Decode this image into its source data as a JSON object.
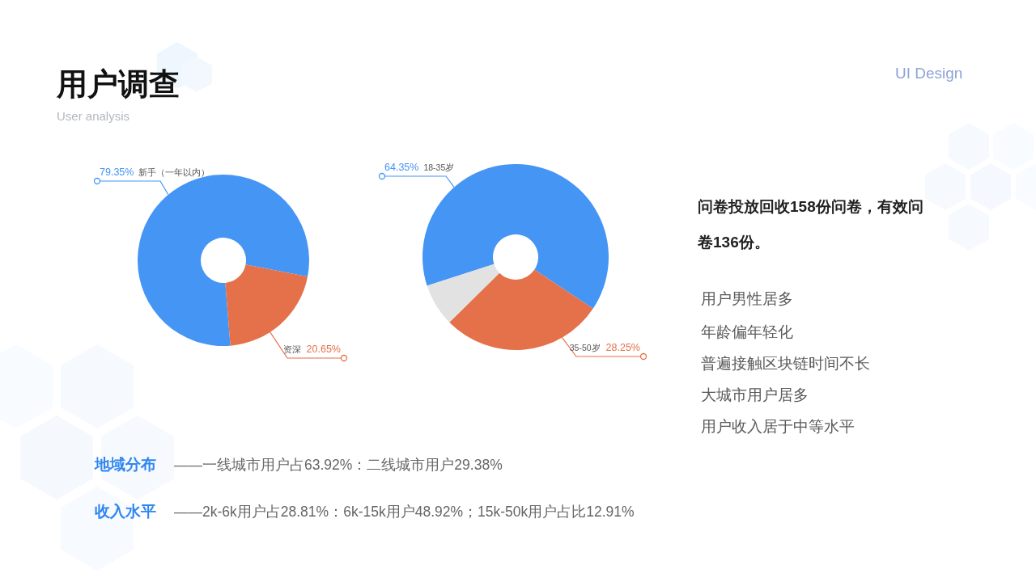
{
  "chart_data": [
    {
      "type": "other",
      "title": "用户调查",
      "subtitle": "User analysis",
      "annotations": [
        "UI Design"
      ]
    },
    {
      "type": "donut",
      "categories": [
        "新手（一年以内）",
        "资深"
      ],
      "values": [
        79.35,
        20.65
      ],
      "colors": [
        "#4595f5",
        "#e4714a"
      ],
      "value_labels": [
        "79.35%",
        "20.65%"
      ]
    },
    {
      "type": "donut",
      "categories": [
        "18-35岁",
        "35-50岁",
        null
      ],
      "values": [
        64.35,
        28.25,
        7.4
      ],
      "colors": [
        "#4595f5",
        "#e4714a",
        "#e2e2e2"
      ],
      "value_labels": [
        "64.35%",
        "28.25%",
        null
      ]
    },
    {
      "type": "other",
      "annotations": [
        "问卷投放回收158份问卷，有效问卷136份。",
        "用户男性居多",
        "年龄偏年轻化",
        "普遍接触区块链时间不长",
        "大城市用户居多",
        "用户收入居于中等水平",
        "地域分布",
        "——一线城市用户占63.92%：二线城市用户29.38%",
        "收入水平",
        "——2k-6k用户占28.81%：6k-15k用户48.92%；15k-50k用户占比12.91%"
      ]
    }
  ]
}
